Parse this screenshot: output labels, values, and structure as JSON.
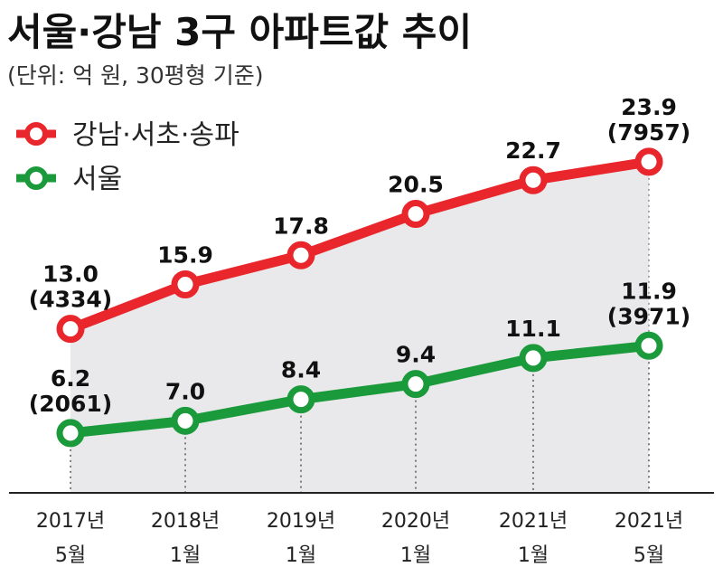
{
  "chart_data": {
    "type": "line",
    "title": "서울·강남 3구 아파트값 추이",
    "subtitle": "(단위: 억 원, 30평형 기준)",
    "categories": [
      [
        "2017년",
        "5월"
      ],
      [
        "2018년",
        "1월"
      ],
      [
        "2019년",
        "1월"
      ],
      [
        "2020년",
        "1월"
      ],
      [
        "2021년",
        "1월"
      ],
      [
        "2021년",
        "5월"
      ]
    ],
    "ylim": [
      0,
      25
    ],
    "grid": false,
    "legend_position": "top-left",
    "series": [
      {
        "name": "강남·서초·송파",
        "color": "#e8262b",
        "values": [
          13.0,
          15.9,
          17.8,
          20.5,
          22.7,
          23.9
        ],
        "labels": [
          "13.0",
          "15.9",
          "17.8",
          "20.5",
          "22.7",
          "23.9"
        ],
        "sublabels": [
          "(4334)",
          "",
          "",
          "",
          "",
          "(7957)"
        ]
      },
      {
        "name": "서울",
        "color": "#1a9a3a",
        "values": [
          6.2,
          7.0,
          8.4,
          9.4,
          11.1,
          11.9
        ],
        "labels": [
          "6.2",
          "7.0",
          "8.4",
          "9.4",
          "11.1",
          "11.9"
        ],
        "sublabels": [
          "(2061)",
          "",
          "",
          "",
          "",
          "(3971)"
        ]
      }
    ]
  }
}
